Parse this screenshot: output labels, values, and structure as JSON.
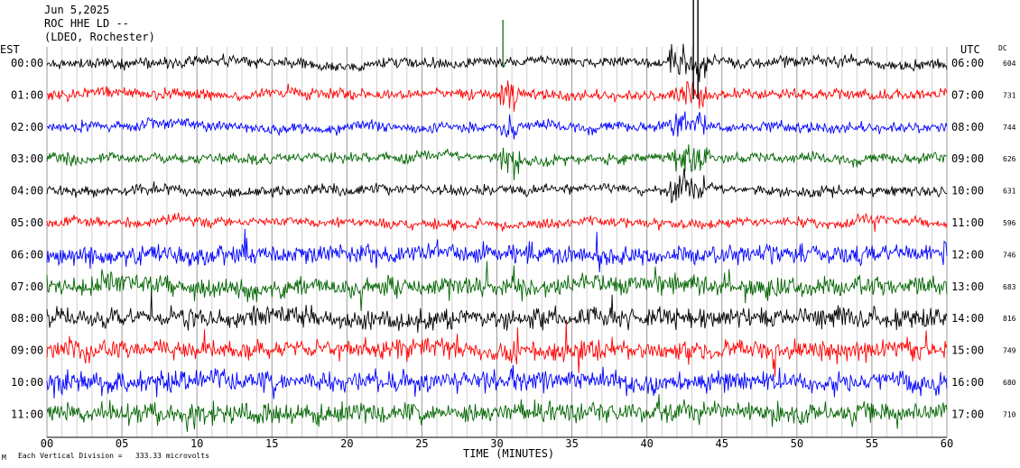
{
  "header": {
    "date": "Jun 5,2025",
    "station": "ROC HHE LD --",
    "network": "(LDEO, Rochester)"
  },
  "left_axis_title": "EST",
  "right_axis_title": "UTC",
  "dc_title": "DC",
  "footer": {
    "mark": "M",
    "scale_text": "Each Vertical Division = ",
    "scale_value": "333.33 microvolts"
  },
  "chart_data": {
    "type": "line",
    "title": "",
    "xlabel": "TIME (MINUTES)",
    "xlim": [
      0,
      60
    ],
    "x_ticks": [
      "00",
      "05",
      "10",
      "15",
      "20",
      "25",
      "30",
      "35",
      "40",
      "45",
      "50",
      "55",
      "60"
    ],
    "grid": true,
    "color_cycle": [
      "#000000",
      "#ff0000",
      "#0000ff",
      "#006400"
    ],
    "rows": [
      {
        "est": "00:00",
        "utc": "06:00",
        "dc": "604"
      },
      {
        "est": "01:00",
        "utc": "07:00",
        "dc": "731"
      },
      {
        "est": "02:00",
        "utc": "08:00",
        "dc": "744"
      },
      {
        "est": "03:00",
        "utc": "09:00",
        "dc": "626"
      },
      {
        "est": "04:00",
        "utc": "10:00",
        "dc": "631"
      },
      {
        "est": "05:00",
        "utc": "11:00",
        "dc": "596"
      },
      {
        "est": "06:00",
        "utc": "12:00",
        "dc": "746"
      },
      {
        "est": "07:00",
        "utc": "13:00",
        "dc": "683"
      },
      {
        "est": "08:00",
        "utc": "14:00",
        "dc": "816"
      },
      {
        "est": "09:00",
        "utc": "15:00",
        "dc": "749"
      },
      {
        "est": "10:00",
        "utc": "16:00",
        "dc": "680"
      },
      {
        "est": "11:00",
        "utc": "17:00",
        "dc": "710"
      }
    ],
    "events": [
      {
        "rows": [
          1,
          2,
          3
        ],
        "start_min": 30.2,
        "end_min": 31.5,
        "note_color": "green"
      },
      {
        "rows": [
          0,
          1,
          2,
          3,
          4
        ],
        "start_min": 41.5,
        "end_min": 44.0
      }
    ]
  }
}
